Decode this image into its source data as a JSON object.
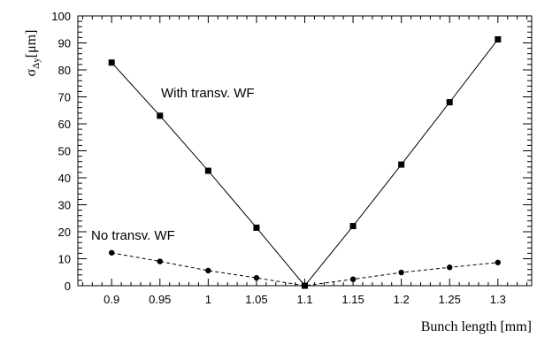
{
  "chart_data": {
    "type": "line",
    "xlabel": "Bunch length [mm]",
    "ylabel_main": "σ",
    "ylabel_sub": "Δy",
    "ylabel_unit": "[μm]",
    "x_tick_labels": [
      "0.9",
      "0.95",
      "1",
      "1.05",
      "1.1",
      "1.15",
      "1.2",
      "1.25",
      "1.3"
    ],
    "y_tick_labels": [
      "0",
      "10",
      "20",
      "30",
      "40",
      "50",
      "60",
      "70",
      "80",
      "90",
      "100"
    ],
    "xlim": [
      0.865,
      1.335
    ],
    "ylim": [
      0,
      100
    ],
    "grid": false,
    "series": [
      {
        "name": "With transv. WF",
        "marker": "square",
        "line_style": "solid",
        "x": [
          0.9,
          0.95,
          1.0,
          1.05,
          1.1,
          1.15,
          1.2,
          1.25,
          1.3
        ],
        "values": [
          82.7,
          63.0,
          42.6,
          21.5,
          0.0,
          22.1,
          44.9,
          68.0,
          91.3
        ]
      },
      {
        "name": "No transv. WF",
        "marker": "circle",
        "line_style": "dashed",
        "x": [
          0.9,
          0.95,
          1.0,
          1.05,
          1.1,
          1.15,
          1.2,
          1.25,
          1.3
        ],
        "values": [
          12.2,
          9.0,
          5.6,
          2.9,
          0.0,
          2.4,
          4.9,
          6.8,
          8.6
        ]
      }
    ],
    "annotations": [
      "With transv. WF",
      "No transv. WF"
    ]
  }
}
